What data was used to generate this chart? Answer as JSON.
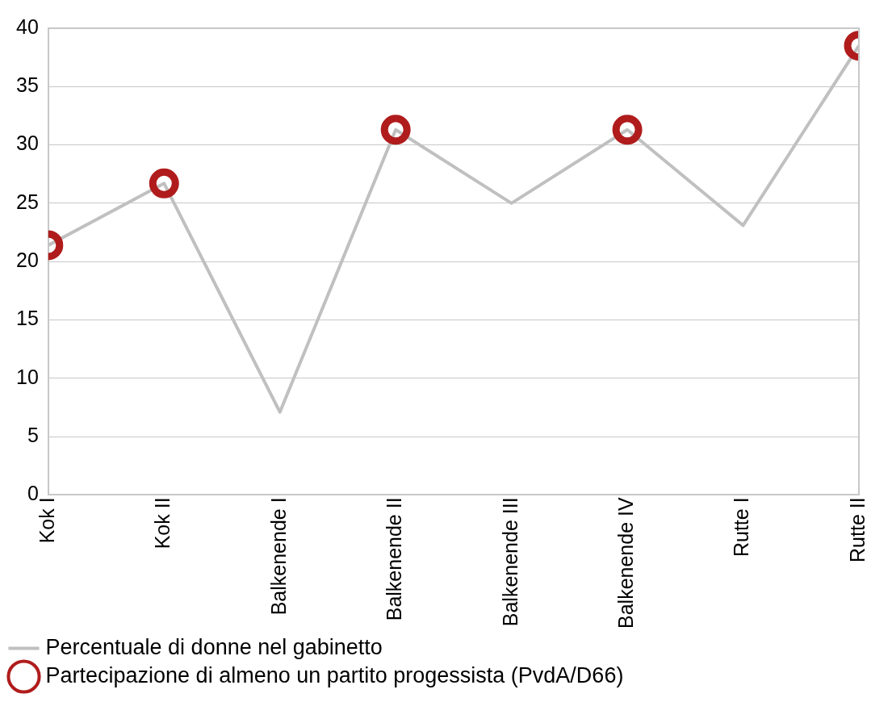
{
  "chart_data": {
    "type": "line",
    "categories": [
      "Kok I",
      "Kok II",
      "Balkenende I",
      "Balkenende II",
      "Balkenende III",
      "Balkenende IV",
      "Rutte I",
      "Rutte II"
    ],
    "series": [
      {
        "name": "Percentuale di donne nel gabinetto",
        "color": "#c0c0c0",
        "values": [
          21.4,
          26.7,
          7.1,
          31.3,
          25.0,
          31.3,
          23.1,
          38.5
        ],
        "marker": "none"
      },
      {
        "name": "Partecipazione di almeno un partito progessista (PvdA/D66)",
        "type": "scatter",
        "color": "#b01c1c",
        "x": [
          "Kok I",
          "Kok II",
          "Balkenende II",
          "Balkenende IV",
          "Rutte II"
        ],
        "values": [
          21.4,
          26.7,
          31.3,
          31.3,
          38.5
        ],
        "marker": "circle"
      }
    ],
    "ylim": [
      0,
      40
    ],
    "yticks": [
      0,
      5,
      10,
      15,
      20,
      25,
      30,
      35,
      40
    ],
    "grid": "y",
    "legend": "bottom left"
  }
}
